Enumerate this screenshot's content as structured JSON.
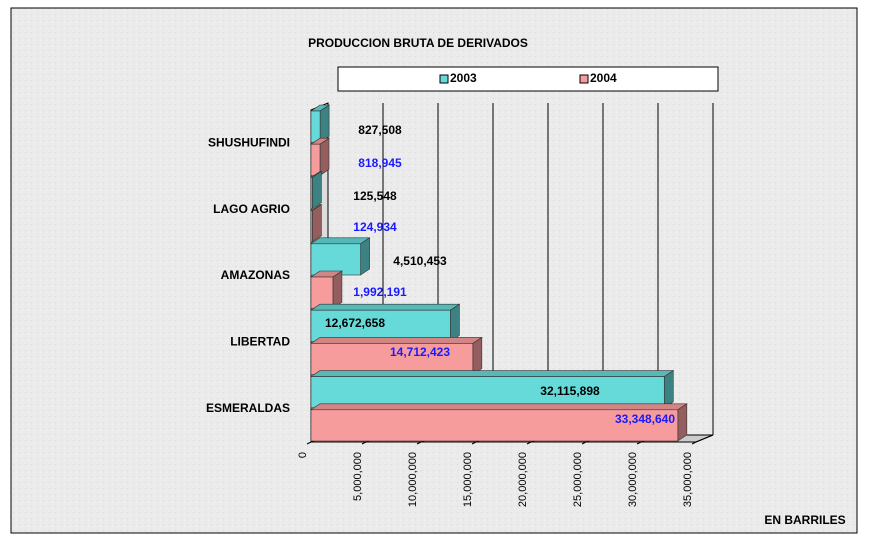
{
  "chart_data": {
    "type": "bar",
    "orientation": "horizontal",
    "title": "PRODUCCION BRUTA DE DERIVADOS",
    "categories": [
      "SHUSHUFINDI",
      "LAGO AGRIO",
      "AMAZONAS",
      "LIBERTAD",
      "ESMERALDAS"
    ],
    "series": [
      {
        "name": "2003",
        "color": "#66d9d9",
        "values": [
          827508,
          125548,
          4510453,
          12672658,
          32115898
        ],
        "value_labels": [
          "827,508",
          "125,548",
          "4,510,453",
          "12,672,658",
          "32,115,898"
        ],
        "label_color": "#000000"
      },
      {
        "name": "2004",
        "color": "#f79c9c",
        "values": [
          818945,
          124934,
          1992191,
          14712423,
          33348640
        ],
        "value_labels": [
          "818,945",
          "124,934",
          "1,992,191",
          "14,712,423",
          "33,348,640"
        ],
        "label_color": "#1a1aff"
      }
    ],
    "xlim": [
      0,
      35000000
    ],
    "xticks": [
      0,
      {
        "value": 5000000,
        "label": "5,000,000"
      },
      {
        "value": 10000000,
        "label": "10,000,000"
      },
      {
        "value": 15000000,
        "label": "15,000,000"
      },
      {
        "value": 20000000,
        "label": "20,000,000"
      },
      {
        "value": 25000000,
        "label": "25,000,000"
      },
      {
        "value": 30000000,
        "label": "30,000,000"
      },
      {
        "value": 35000000,
        "label": "35,000,000"
      }
    ],
    "xlabel": "EN BARRILES",
    "grid": true,
    "legend": "top"
  }
}
